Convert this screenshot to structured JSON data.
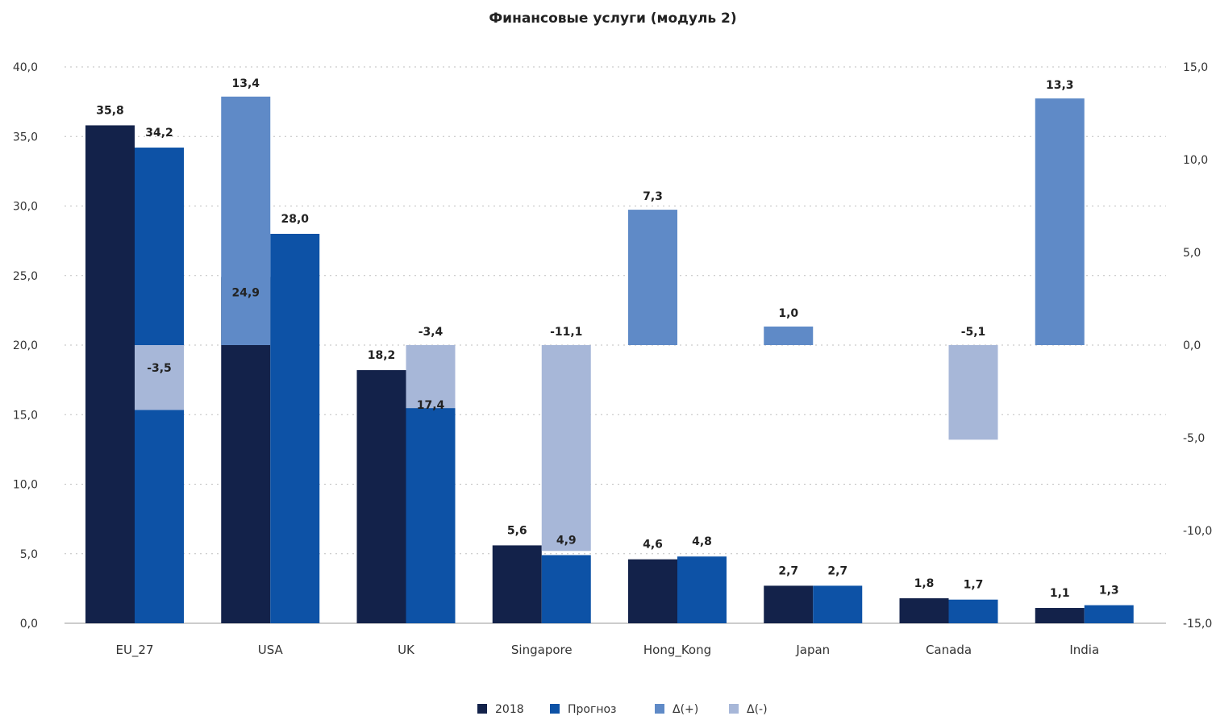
{
  "chart_data": {
    "type": "bar",
    "title": "Финансовые услуги (модуль 2)",
    "categories": [
      "EU_27",
      "USA",
      "UK",
      "Singapore",
      "Hong_Kong",
      "Japan",
      "Canada",
      "India"
    ],
    "series": [
      {
        "name": "2018",
        "axis": "left",
        "color": "#13224a",
        "values": [
          35.8,
          24.9,
          18.2,
          5.6,
          4.6,
          2.7,
          1.8,
          1.1
        ]
      },
      {
        "name": "Прогноз",
        "axis": "left",
        "color": "#0d52a6",
        "values": [
          34.2,
          28.0,
          17.4,
          4.9,
          4.8,
          2.7,
          1.7,
          1.3
        ]
      },
      {
        "name": "Δ(+)",
        "axis": "right",
        "color": "#5f8ac7",
        "values": [
          null,
          13.4,
          null,
          null,
          7.3,
          1.0,
          null,
          13.3
        ]
      },
      {
        "name": "Δ(-)",
        "axis": "right",
        "color": "#a7b7d8",
        "values": [
          -3.5,
          null,
          -3.4,
          -11.1,
          null,
          null,
          -5.1,
          null
        ]
      }
    ],
    "data_labels": {
      "2018": [
        "35,8",
        "24,9",
        "18,2",
        "5,6",
        "4,6",
        "2,7",
        "1,8",
        "1,1"
      ],
      "Прогноз": [
        "34,2",
        "28,0",
        "17,4",
        "4,9",
        "4,8",
        "2,7",
        "1,7",
        "1,3"
      ],
      "Δ(+)": [
        null,
        "13,4",
        null,
        null,
        "7,3",
        "1,0",
        null,
        "13,3"
      ],
      "Δ(-)": [
        "-3,5",
        null,
        "-3,4",
        "-11,1",
        null,
        null,
        "-5,1",
        null
      ]
    },
    "y_left": {
      "min": 0,
      "max": 40,
      "step": 5,
      "ticks": [
        "0,0",
        "5,0",
        "10,0",
        "15,0",
        "20,0",
        "25,0",
        "30,0",
        "35,0",
        "40,0"
      ]
    },
    "y_right": {
      "min": -15,
      "max": 15,
      "step": 5,
      "ticks": [
        "-15,0",
        "-10,0",
        "-5,0",
        "0,0",
        "5,0",
        "10,0",
        "15,0"
      ]
    },
    "grid": true,
    "legend_position": "bottom-center"
  }
}
